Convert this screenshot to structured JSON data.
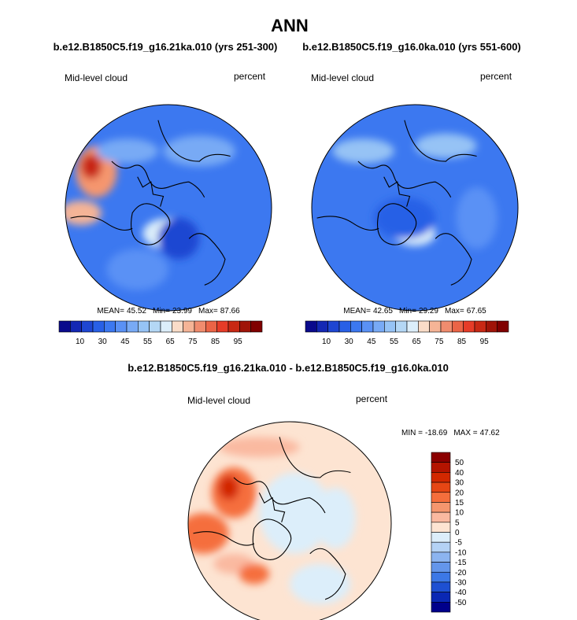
{
  "title": "ANN",
  "panels": [
    {
      "case": "b.e12.B1850C5.f19_g16.21ka.010 (yrs 251-300)",
      "variable": "Mid-level cloud",
      "units": "percent",
      "stats": [
        {
          "label": "MEAN=",
          "value": 45.52
        },
        {
          "label": "Min=",
          "value": 23.99
        },
        {
          "label": "Max=",
          "value": 87.66
        }
      ],
      "colorbar": {
        "labels": [
          10,
          30,
          45,
          55,
          65,
          75,
          85,
          95
        ]
      }
    },
    {
      "case": "b.e12.B1850C5.f19_g16.0ka.010 (yrs 551-600)",
      "variable": "Mid-level cloud",
      "units": "percent",
      "stats": [
        {
          "label": "MEAN=",
          "value": 42.65
        },
        {
          "label": "Min=",
          "value": 29.29
        },
        {
          "label": "Max=",
          "value": 67.65
        }
      ],
      "colorbar": {
        "labels": [
          10,
          30,
          45,
          55,
          65,
          75,
          85,
          95
        ]
      }
    }
  ],
  "difference": {
    "title": "b.e12.B1850C5.f19_g16.21ka.010 - b.e12.B1850C5.f19_g16.0ka.010",
    "variable": "Mid-level cloud",
    "units": "percent",
    "stats": [
      {
        "label": "MIN =",
        "value": -18.69
      },
      {
        "label": "MAX =",
        "value": 47.62
      }
    ],
    "colorbar": {
      "labels": [
        50,
        40,
        30,
        20,
        15,
        10,
        5,
        0,
        -5,
        -10,
        -15,
        -20,
        -30,
        -40,
        -50
      ]
    }
  }
}
